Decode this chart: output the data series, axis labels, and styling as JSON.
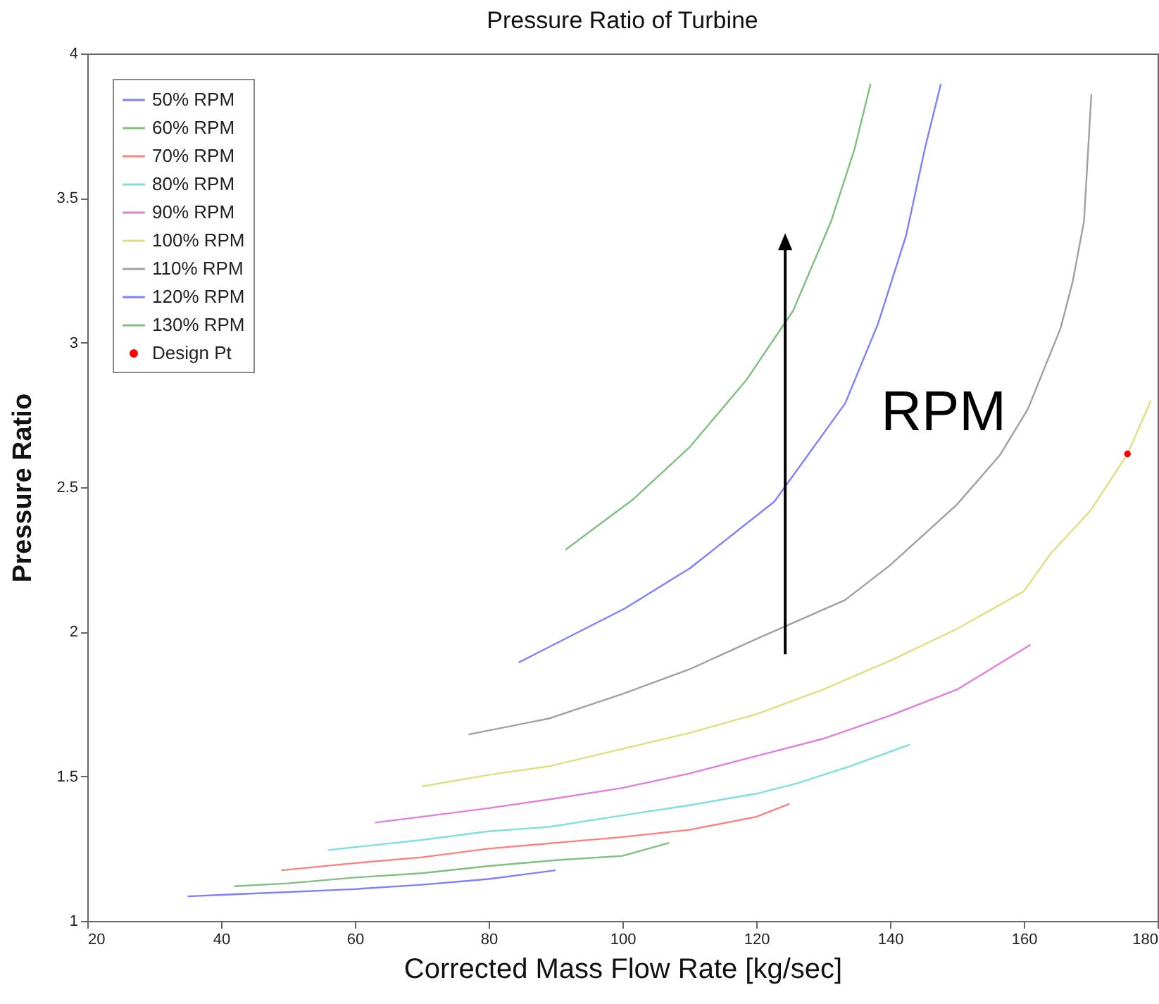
{
  "chart_data": {
    "type": "line",
    "title": "Pressure Ratio of Turbine",
    "xlabel": "Corrected Mass Flow Rate [kg/sec]",
    "ylabel": "Pressure Ratio",
    "xlim": [
      20,
      180
    ],
    "xticks": [
      20,
      40,
      60,
      80,
      100,
      120,
      140,
      160,
      180
    ],
    "ylim": [
      1,
      4
    ],
    "yticks": [
      1,
      1.5,
      2,
      2.5,
      3,
      3.5,
      4
    ],
    "grid": false,
    "legend": "top left",
    "line_style": "solid",
    "annotations": [
      "RPM"
    ],
    "series": [
      {
        "name": "50% RPM",
        "color": "#7f7fff",
        "x": [
          35,
          40,
          50,
          60,
          70,
          80,
          90
        ],
        "values": [
          1.085,
          1.09,
          1.1,
          1.11,
          1.125,
          1.145,
          1.175
        ]
      },
      {
        "name": "60% RPM",
        "color": "#7fbf7f",
        "x": [
          42,
          50,
          60,
          70,
          80,
          90,
          100,
          107
        ],
        "values": [
          1.12,
          1.13,
          1.15,
          1.165,
          1.19,
          1.21,
          1.225,
          1.27
        ]
      },
      {
        "name": "70% RPM",
        "color": "#ff7f7f",
        "x": [
          49,
          60,
          70,
          80,
          90,
          100,
          110,
          120,
          125
        ],
        "values": [
          1.175,
          1.2,
          1.22,
          1.25,
          1.27,
          1.29,
          1.315,
          1.36,
          1.405
        ]
      },
      {
        "name": "80% RPM",
        "color": "#7fdfdf",
        "x": [
          56,
          60,
          70,
          80,
          89,
          100,
          110,
          120,
          126,
          134,
          143
        ],
        "values": [
          1.245,
          1.255,
          1.28,
          1.31,
          1.325,
          1.365,
          1.4,
          1.44,
          1.475,
          1.535,
          1.61
        ]
      },
      {
        "name": "90% RPM",
        "color": "#df7fdf",
        "x": [
          63,
          70,
          80,
          89,
          100,
          110,
          120,
          130,
          140,
          150,
          161
        ],
        "values": [
          1.34,
          1.36,
          1.39,
          1.42,
          1.46,
          1.51,
          1.57,
          1.63,
          1.71,
          1.8,
          1.955
        ]
      },
      {
        "name": "100% RPM",
        "color": "#dfdf7f",
        "x": [
          70,
          80,
          89,
          100,
          110,
          120,
          130,
          140,
          150,
          160,
          164,
          170,
          175.5,
          179
        ],
        "values": [
          1.465,
          1.505,
          1.535,
          1.595,
          1.65,
          1.715,
          1.8,
          1.9,
          2.01,
          2.14,
          2.27,
          2.42,
          2.615,
          2.8
        ]
      },
      {
        "name": "110% RPM",
        "color": "#a0a0a0",
        "x": [
          77,
          89,
          100,
          110,
          120,
          133.3,
          140,
          150,
          156.4,
          160.6,
          165.5,
          167.3,
          169,
          170.1
        ],
        "values": [
          1.645,
          1.7,
          1.785,
          1.87,
          1.975,
          2.11,
          2.23,
          2.44,
          2.61,
          2.77,
          3.05,
          3.21,
          3.42,
          3.86
        ]
      },
      {
        "name": "120% RPM",
        "color": "#7f7fff",
        "x": [
          84.5,
          100.3,
          110.1,
          122.7,
          133.3,
          138.2,
          142.4,
          145.2,
          147.6
        ],
        "values": [
          1.894,
          2.08,
          2.22,
          2.45,
          2.79,
          3.065,
          3.37,
          3.67,
          3.895
        ]
      },
      {
        "name": "130% RPM",
        "color": "#7fbf7f",
        "x": [
          91.5,
          101.7,
          110.1,
          118.5,
          125.5,
          131.2,
          134.7,
          137.1
        ],
        "values": [
          2.284,
          2.46,
          2.64,
          2.87,
          3.11,
          3.42,
          3.67,
          3.895
        ]
      },
      {
        "name": "Design Pt",
        "type": "scatter",
        "marker": "circle",
        "color": "#ff0000",
        "x": [
          175.5
        ],
        "values": [
          2.615
        ]
      }
    ]
  }
}
